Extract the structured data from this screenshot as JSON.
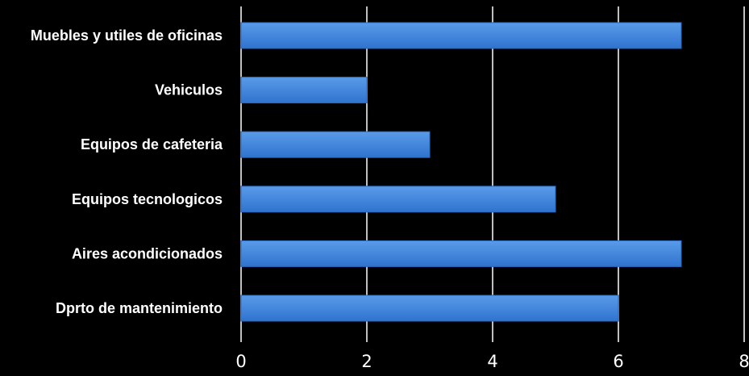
{
  "chart_data": {
    "type": "bar",
    "orientation": "horizontal",
    "categories": [
      "Muebles y utiles de oficinas",
      "Vehiculos",
      "Equipos de cafeteria",
      "Equipos tecnologicos",
      "Aires acondicionados",
      "Dprto de mantenimiento"
    ],
    "values": [
      7,
      2,
      3,
      5,
      7,
      6
    ],
    "xlim": [
      0,
      8
    ],
    "x_ticks": [
      0,
      2,
      4,
      6,
      8
    ],
    "grid": "vertical",
    "legend": "none",
    "colors": {
      "background": "#000000",
      "bar_top": "#5a9be8",
      "bar_bottom": "#2f73cf",
      "bar_edge": "#2a6ac0",
      "gridline": "#ffffff",
      "text": "#ffffff"
    }
  }
}
